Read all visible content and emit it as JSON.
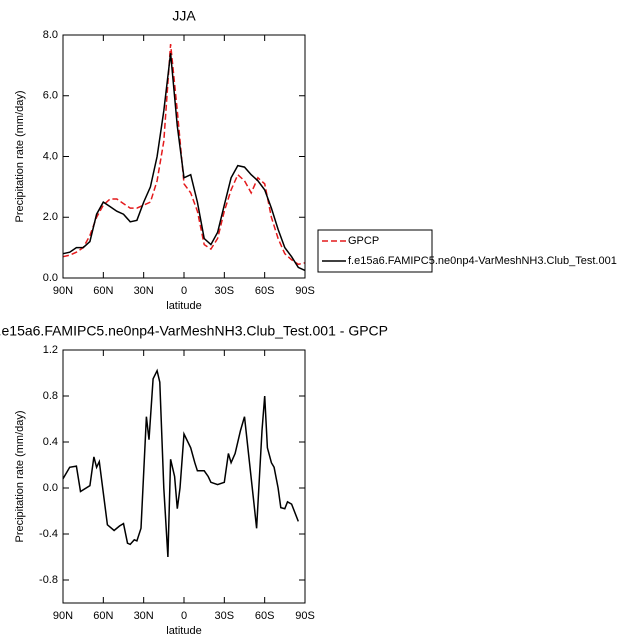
{
  "chart_data": [
    {
      "type": "line",
      "title": "JJA",
      "xlabel": "latitude",
      "ylabel": "Precipitation rate (mm/day)",
      "x": [
        90,
        85,
        80,
        75,
        70,
        65,
        60,
        55,
        50,
        45,
        40,
        35,
        30,
        25,
        20,
        15,
        10,
        5,
        0,
        -5,
        -10,
        -15,
        -20,
        -25,
        -30,
        -35,
        -40,
        -45,
        -50,
        -55,
        -60,
        -65,
        -70,
        -75,
        -80,
        -85,
        -90
      ],
      "series": [
        {
          "name": "GPCP",
          "color": "#e41a1c",
          "line_style": "dashed",
          "values": [
            0.7,
            0.75,
            0.85,
            1.0,
            1.4,
            2.0,
            2.4,
            2.6,
            2.6,
            2.45,
            2.3,
            2.3,
            2.4,
            2.5,
            3.2,
            4.5,
            7.7,
            5.5,
            3.1,
            2.8,
            2.2,
            1.1,
            0.95,
            1.3,
            2.2,
            2.9,
            3.4,
            3.2,
            2.8,
            3.3,
            3.1,
            2.0,
            1.3,
            0.8,
            0.6,
            0.45,
            0.5
          ]
        },
        {
          "name": "f.e15a6.FAMIPC5.ne0np4-VarMeshNH3.Club_Test.001",
          "color": "#000000",
          "line_style": "solid",
          "values": [
            0.8,
            0.85,
            1.0,
            1.0,
            1.2,
            2.1,
            2.5,
            2.35,
            2.2,
            2.1,
            1.85,
            1.9,
            2.5,
            3.0,
            4.0,
            5.5,
            7.4,
            5.0,
            3.3,
            3.4,
            2.5,
            1.3,
            1.1,
            1.5,
            2.4,
            3.3,
            3.7,
            3.65,
            3.4,
            3.2,
            2.9,
            2.3,
            1.6,
            1.0,
            0.7,
            0.35,
            0.25
          ]
        }
      ],
      "xlim": [
        90,
        -90
      ],
      "xticks": [
        {
          "value": 90,
          "label": "90N"
        },
        {
          "value": 60,
          "label": "60N"
        },
        {
          "value": 30,
          "label": "30N"
        },
        0,
        {
          "value": -30,
          "label": "30S"
        },
        {
          "value": -60,
          "label": "60S"
        },
        {
          "value": -90,
          "label": "90S"
        }
      ],
      "ylim": [
        0,
        8
      ],
      "yticks": [
        {
          "value": 0,
          "label": "0.0"
        },
        {
          "value": 2,
          "label": "2.0"
        },
        {
          "value": 4,
          "label": "4.0"
        },
        {
          "value": 6,
          "label": "6.0"
        },
        {
          "value": 8,
          "label": "8.0"
        }
      ],
      "legend": "right"
    },
    {
      "type": "line",
      "title": "f.e15a6.FAMIPC5.ne0np4-VarMeshNH3.Club_Test.001 - GPCP",
      "xlabel": "latitude",
      "ylabel": "Precipitation rate (mm/day)",
      "x": [
        90,
        85,
        80,
        77,
        70,
        67,
        65,
        63,
        57,
        52,
        48,
        45,
        42,
        40,
        37,
        35,
        32,
        28,
        26,
        23,
        20,
        18,
        15,
        12,
        10,
        7,
        5,
        3,
        0,
        -5,
        -8,
        -10,
        -13,
        -15,
        -18,
        -20,
        -25,
        -30,
        -33,
        -35,
        -38,
        -42,
        -45,
        -48,
        -52,
        -54,
        -58,
        -60,
        -62,
        -65,
        -67,
        -70,
        -72,
        -75,
        -77,
        -80,
        -85
      ],
      "series": [
        {
          "name": null,
          "color": "#000000",
          "line_style": "solid",
          "values": [
            0.08,
            0.18,
            0.19,
            -0.03,
            0.02,
            0.27,
            0.18,
            0.23,
            -0.32,
            -0.37,
            -0.33,
            -0.31,
            -0.48,
            -0.49,
            -0.45,
            -0.46,
            -0.35,
            0.62,
            0.42,
            0.95,
            1.02,
            0.92,
            0.0,
            -0.6,
            0.25,
            0.1,
            -0.18,
            0.0,
            0.47,
            0.35,
            0.22,
            0.15,
            0.15,
            0.15,
            0.1,
            0.05,
            0.03,
            0.05,
            0.3,
            0.22,
            0.3,
            0.5,
            0.62,
            0.3,
            -0.13,
            -0.35,
            0.5,
            0.8,
            0.35,
            0.22,
            0.18,
            0.0,
            -0.17,
            -0.18,
            -0.12,
            -0.14,
            -0.29
          ]
        }
      ],
      "xlim": [
        90,
        -90
      ],
      "xticks": [
        {
          "value": 90,
          "label": "90N"
        },
        {
          "value": 60,
          "label": "60N"
        },
        {
          "value": 30,
          "label": "30N"
        },
        0,
        {
          "value": -30,
          "label": "30S"
        },
        {
          "value": -60,
          "label": "60S"
        },
        {
          "value": -90,
          "label": "90S"
        }
      ],
      "ylim": [
        -1.0,
        1.2
      ],
      "yticks": [
        {
          "value": -0.8,
          "label": "-0.8"
        },
        {
          "value": -0.4,
          "label": "-0.4"
        },
        {
          "value": 0,
          "label": "0.0"
        },
        {
          "value": 0.4,
          "label": "0.4"
        },
        {
          "value": 0.8,
          "label": "0.8"
        },
        {
          "value": 1.2,
          "label": "1.2"
        }
      ]
    }
  ]
}
